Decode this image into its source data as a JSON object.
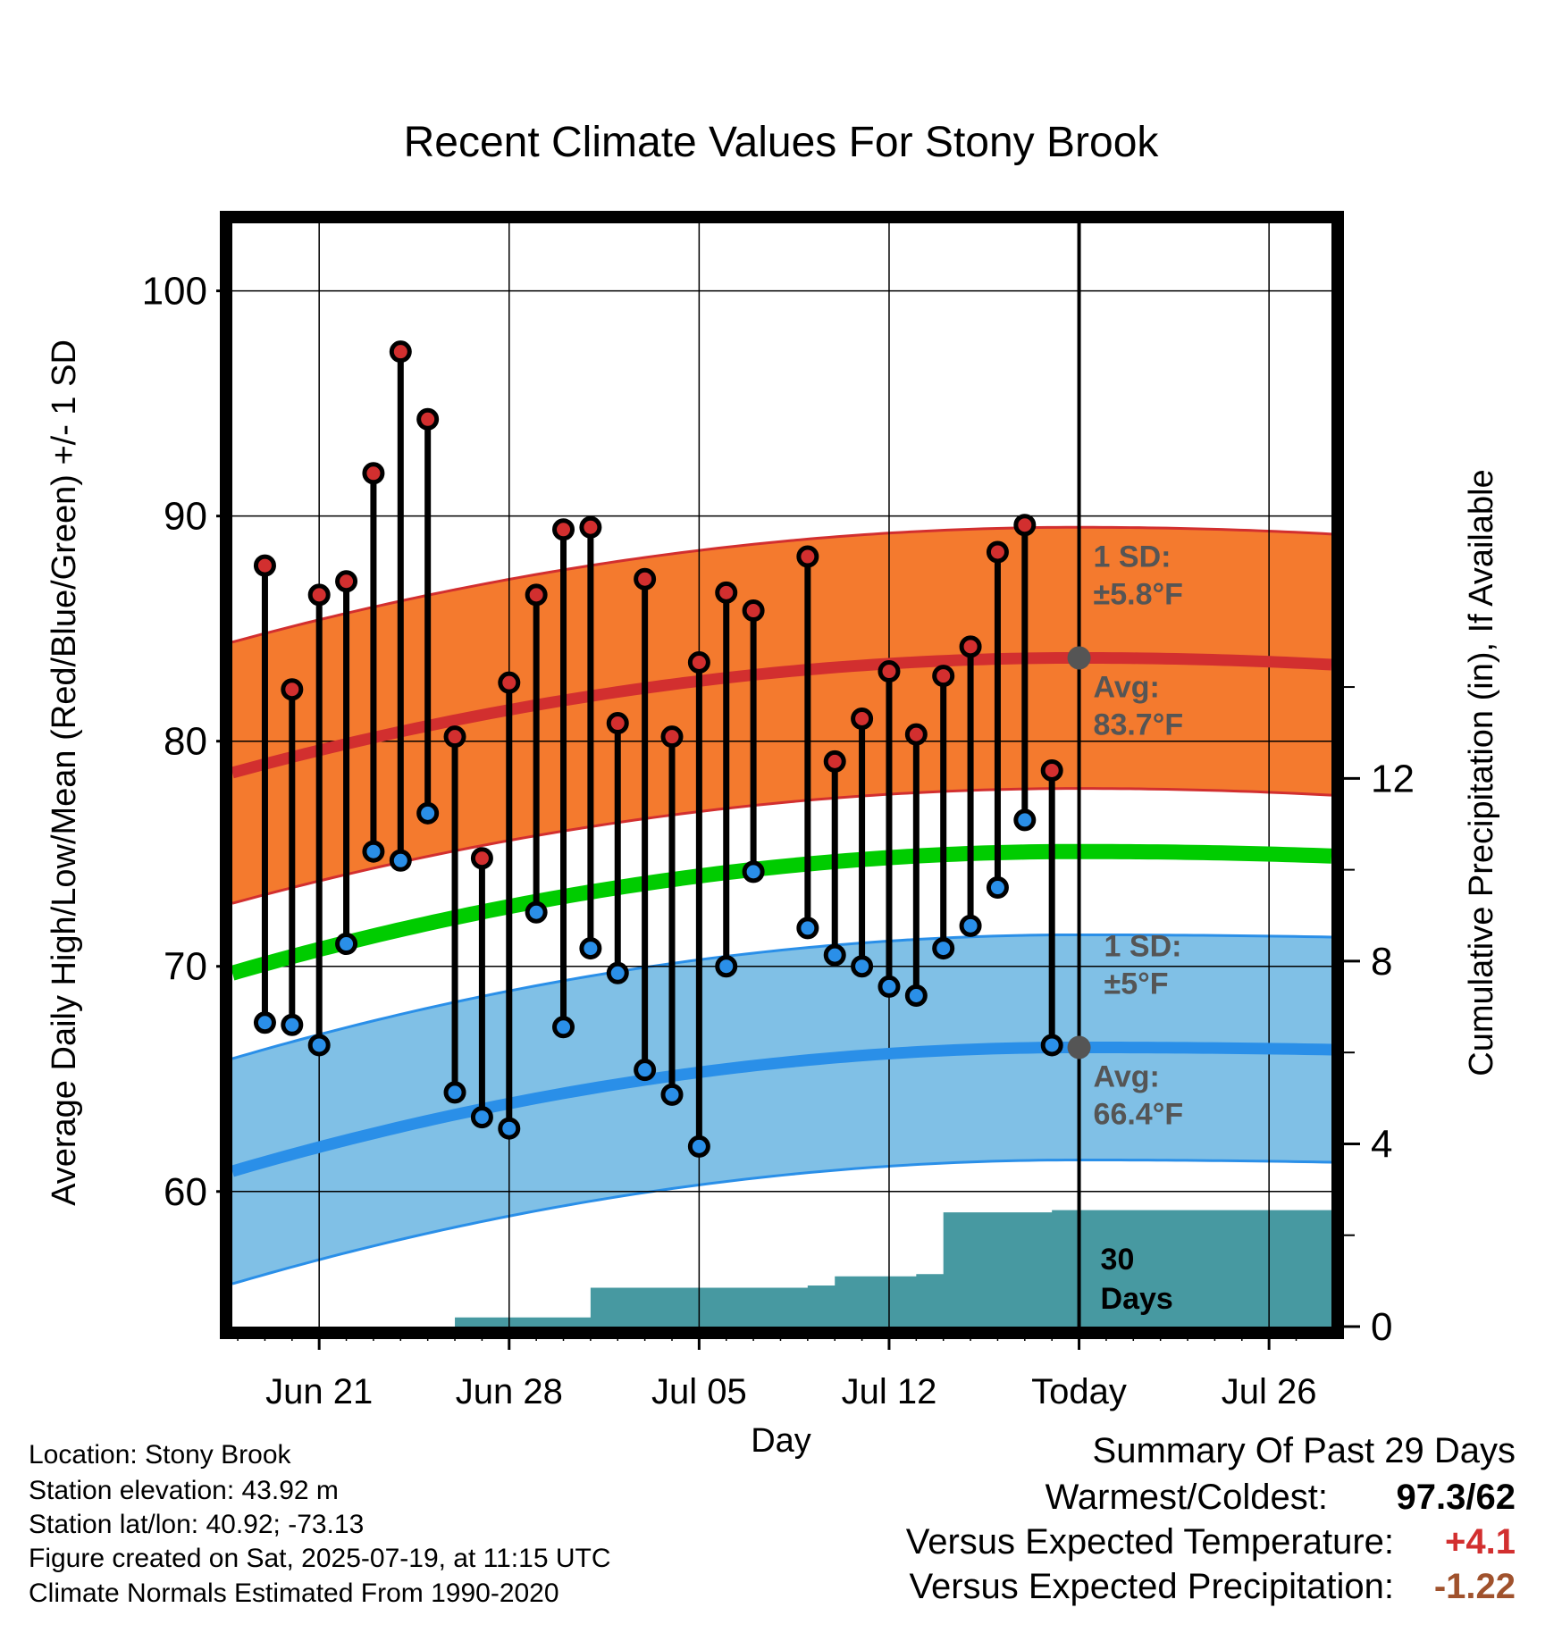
{
  "chart_data": {
    "type": "line",
    "title": "Recent Climate Values For Stony Brook",
    "xlabel": "Day",
    "ylabel": "Average Daily High/Low/Mean (Red/Blue/Green) +/- 1 SD",
    "y2label": "Cumulative Precipitation (in), If Available",
    "ylim": [
      54,
      103
    ],
    "y_ticks": [
      60,
      70,
      80,
      90,
      100
    ],
    "y2lim": [
      0,
      24.15
    ],
    "y2_ticks": [
      0,
      4,
      8,
      12
    ],
    "x_tick_labels": [
      "Jun 21",
      "Jun 28",
      "Jul 05",
      "Jul 12",
      "Today",
      "Jul 26"
    ],
    "x_range_days_from_jun21": [
      -3.2,
      37.3
    ],
    "grid": true,
    "today_marker": "Jul 19",
    "days": [
      "Jun 19",
      "Jun 20",
      "Jun 21",
      "Jun 22",
      "Jun 23",
      "Jun 24",
      "Jun 25",
      "Jun 26",
      "Jun 27",
      "Jun 28",
      "Jun 29",
      "Jun 30",
      "Jul 01",
      "Jul 02",
      "Jul 03",
      "Jul 04",
      "Jul 05",
      "Jul 06",
      "Jul 07",
      "Jul 08",
      "Jul 09",
      "Jul 10",
      "Jul 11",
      "Jul 12",
      "Jul 13",
      "Jul 14",
      "Jul 15",
      "Jul 16",
      "Jul 17",
      "Jul 18"
    ],
    "daily_high": [
      87.8,
      82.3,
      86.5,
      87.1,
      91.9,
      97.3,
      94.3,
      80.2,
      74.8,
      82.6,
      86.5,
      89.4,
      89.5,
      80.8,
      87.2,
      80.2,
      83.5,
      86.6,
      85.8,
      null,
      88.2,
      79.1,
      81.0,
      83.1,
      80.3,
      82.9,
      84.2,
      88.4,
      89.6,
      78.7
    ],
    "daily_low": [
      67.5,
      67.4,
      66.5,
      71.0,
      75.1,
      74.7,
      76.8,
      64.4,
      63.3,
      62.8,
      72.4,
      67.3,
      70.8,
      69.7,
      65.4,
      64.3,
      62.0,
      70.0,
      74.2,
      null,
      71.7,
      70.5,
      70.0,
      69.1,
      68.7,
      70.8,
      71.8,
      73.5,
      76.5,
      66.5
    ],
    "normal_high": {
      "start": 78.6,
      "peak": 83.7,
      "end": 83.4,
      "sd": 5.8
    },
    "normal_low": {
      "start": 60.9,
      "peak": 66.4,
      "end": 66.3,
      "sd": 5.0
    },
    "normal_mean": {
      "start": 69.7,
      "peak": 75.1,
      "end": 74.9
    },
    "cumulative_precip": {
      "days": [
        "Jun 24",
        "Jun 26",
        "Jun 30",
        "Jul 01",
        "Jul 09",
        "Jul 10",
        "Jul 13",
        "Jul 14",
        "Jul 18",
        "Jul 29"
      ],
      "values": [
        0.0,
        0.2,
        0.2,
        0.85,
        0.9,
        1.1,
        1.15,
        2.5,
        2.55,
        2.55
      ]
    },
    "colors": {
      "high": "#d22f2f",
      "low": "#2a8fe8",
      "mean": "#00cc00",
      "high_band": "#f47a2e",
      "low_band": "#80c0e6",
      "precip": "#4799a1",
      "annotation": "#555555"
    },
    "annotations": {
      "high_sd": "1 SD:\n±5.8°F",
      "high_avg": "Avg:\n83.7°F",
      "low_sd": "1 SD:\n±5°F",
      "low_avg": "Avg:\n66.4°F",
      "days": "30\nDays"
    }
  },
  "info": {
    "location": "Location: Stony Brook",
    "elevation": "Station elevation: 43.92 m",
    "latlon": "Station lat/lon: 40.92; -73.13",
    "created": "Figure created on Sat, 2025-07-19, at 11:15 UTC",
    "normals": "Climate Normals Estimated From 1990-2020"
  },
  "summary": {
    "title": "Summary Of Past 29 Days",
    "warm_cold_label": "Warmest/Coldest:",
    "warm_cold_value": "97.3/62",
    "temp_label": "Versus Expected Temperature:",
    "temp_value": "+4.1",
    "temp_color": "#d22f2f",
    "precip_label": "Versus Expected Precipitation:",
    "precip_value": "-1.22",
    "precip_color": "#a0522d"
  }
}
